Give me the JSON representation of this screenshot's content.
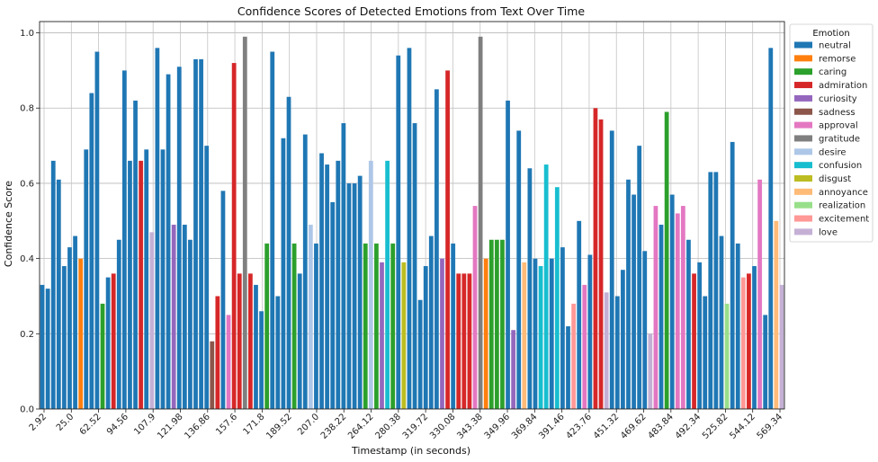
{
  "chart_data": {
    "type": "bar",
    "title": "Confidence Scores of Detected Emotions from Text Over Time",
    "xlabel": "Timestamp (in seconds)",
    "ylabel": "Confidence Score",
    "ylim": [
      0,
      1.03
    ],
    "yticks": [
      "0.0",
      "0.2",
      "0.4",
      "0.6",
      "0.8",
      "1.0"
    ],
    "grid": true,
    "legend_title": "Emotion",
    "legend_position": "top-right",
    "emotions": [
      {
        "name": "neutral",
        "color": "#1f77b4"
      },
      {
        "name": "remorse",
        "color": "#ff7f0e"
      },
      {
        "name": "caring",
        "color": "#2ca02c"
      },
      {
        "name": "admiration",
        "color": "#d62728"
      },
      {
        "name": "curiosity",
        "color": "#9467bd"
      },
      {
        "name": "sadness",
        "color": "#8c564b"
      },
      {
        "name": "approval",
        "color": "#e377c2"
      },
      {
        "name": "gratitude",
        "color": "#7f7f7f"
      },
      {
        "name": "desire",
        "color": "#aec7e8"
      },
      {
        "name": "confusion",
        "color": "#17becf"
      },
      {
        "name": "disgust",
        "color": "#bcbd22"
      },
      {
        "name": "annoyance",
        "color": "#ffbb78"
      },
      {
        "name": "realization",
        "color": "#98df8a"
      },
      {
        "name": "excitement",
        "color": "#ff9896"
      },
      {
        "name": "love",
        "color": "#c5b0d5"
      }
    ],
    "x_tick_labels": [
      "2.92",
      "25.0",
      "62.52",
      "94.56",
      "107.9",
      "121.98",
      "136.86",
      "157.6",
      "171.8",
      "189.52",
      "207.0",
      "238.22",
      "264.12",
      "280.38",
      "319.72",
      "330.08",
      "343.38",
      "349.96",
      "369.84",
      "391.46",
      "423.76",
      "451.32",
      "469.62",
      "483.84",
      "492.34",
      "525.82",
      "544.12",
      "569.34"
    ],
    "bars": [
      {
        "emotion": "neutral",
        "value": 0.33
      },
      {
        "emotion": "neutral",
        "value": 0.32
      },
      {
        "emotion": "neutral",
        "value": 0.66
      },
      {
        "emotion": "neutral",
        "value": 0.61
      },
      {
        "emotion": "neutral",
        "value": 0.38
      },
      {
        "emotion": "neutral",
        "value": 0.43
      },
      {
        "emotion": "neutral",
        "value": 0.46
      },
      {
        "emotion": "remorse",
        "value": 0.4
      },
      {
        "emotion": "neutral",
        "value": 0.69
      },
      {
        "emotion": "neutral",
        "value": 0.84
      },
      {
        "emotion": "neutral",
        "value": 0.95
      },
      {
        "emotion": "caring",
        "value": 0.28
      },
      {
        "emotion": "neutral",
        "value": 0.35
      },
      {
        "emotion": "admiration",
        "value": 0.36
      },
      {
        "emotion": "neutral",
        "value": 0.45
      },
      {
        "emotion": "neutral",
        "value": 0.9
      },
      {
        "emotion": "neutral",
        "value": 0.66
      },
      {
        "emotion": "neutral",
        "value": 0.82
      },
      {
        "emotion": "admiration",
        "value": 0.66
      },
      {
        "emotion": "neutral",
        "value": 0.69
      },
      {
        "emotion": "love",
        "value": 0.47
      },
      {
        "emotion": "neutral",
        "value": 0.96
      },
      {
        "emotion": "neutral",
        "value": 0.69
      },
      {
        "emotion": "neutral",
        "value": 0.89
      },
      {
        "emotion": "curiosity",
        "value": 0.49
      },
      {
        "emotion": "neutral",
        "value": 0.91
      },
      {
        "emotion": "neutral",
        "value": 0.49
      },
      {
        "emotion": "neutral",
        "value": 0.45
      },
      {
        "emotion": "neutral",
        "value": 0.93
      },
      {
        "emotion": "neutral",
        "value": 0.93
      },
      {
        "emotion": "neutral",
        "value": 0.7
      },
      {
        "emotion": "sadness",
        "value": 0.18
      },
      {
        "emotion": "admiration",
        "value": 0.3
      },
      {
        "emotion": "neutral",
        "value": 0.58
      },
      {
        "emotion": "approval",
        "value": 0.25
      },
      {
        "emotion": "admiration",
        "value": 0.92
      },
      {
        "emotion": "admiration",
        "value": 0.36
      },
      {
        "emotion": "gratitude",
        "value": 0.99
      },
      {
        "emotion": "admiration",
        "value": 0.36
      },
      {
        "emotion": "neutral",
        "value": 0.33
      },
      {
        "emotion": "neutral",
        "value": 0.26
      },
      {
        "emotion": "caring",
        "value": 0.44
      },
      {
        "emotion": "neutral",
        "value": 0.95
      },
      {
        "emotion": "neutral",
        "value": 0.3
      },
      {
        "emotion": "neutral",
        "value": 0.72
      },
      {
        "emotion": "neutral",
        "value": 0.83
      },
      {
        "emotion": "caring",
        "value": 0.44
      },
      {
        "emotion": "neutral",
        "value": 0.36
      },
      {
        "emotion": "neutral",
        "value": 0.73
      },
      {
        "emotion": "desire",
        "value": 0.49
      },
      {
        "emotion": "neutral",
        "value": 0.44
      },
      {
        "emotion": "neutral",
        "value": 0.68
      },
      {
        "emotion": "neutral",
        "value": 0.65
      },
      {
        "emotion": "neutral",
        "value": 0.55
      },
      {
        "emotion": "neutral",
        "value": 0.66
      },
      {
        "emotion": "neutral",
        "value": 0.76
      },
      {
        "emotion": "neutral",
        "value": 0.6
      },
      {
        "emotion": "neutral",
        "value": 0.6
      },
      {
        "emotion": "neutral",
        "value": 0.62
      },
      {
        "emotion": "caring",
        "value": 0.44
      },
      {
        "emotion": "desire",
        "value": 0.66
      },
      {
        "emotion": "caring",
        "value": 0.44
      },
      {
        "emotion": "curiosity",
        "value": 0.39
      },
      {
        "emotion": "confusion",
        "value": 0.66
      },
      {
        "emotion": "caring",
        "value": 0.44
      },
      {
        "emotion": "neutral",
        "value": 0.94
      },
      {
        "emotion": "disgust",
        "value": 0.39
      },
      {
        "emotion": "neutral",
        "value": 0.96
      },
      {
        "emotion": "neutral",
        "value": 0.76
      },
      {
        "emotion": "neutral",
        "value": 0.29
      },
      {
        "emotion": "neutral",
        "value": 0.38
      },
      {
        "emotion": "neutral",
        "value": 0.46
      },
      {
        "emotion": "neutral",
        "value": 0.85
      },
      {
        "emotion": "curiosity",
        "value": 0.4
      },
      {
        "emotion": "admiration",
        "value": 0.9
      },
      {
        "emotion": "neutral",
        "value": 0.44
      },
      {
        "emotion": "admiration",
        "value": 0.36
      },
      {
        "emotion": "admiration",
        "value": 0.36
      },
      {
        "emotion": "admiration",
        "value": 0.36
      },
      {
        "emotion": "approval",
        "value": 0.54
      },
      {
        "emotion": "gratitude",
        "value": 0.99
      },
      {
        "emotion": "remorse",
        "value": 0.4
      },
      {
        "emotion": "caring",
        "value": 0.45
      },
      {
        "emotion": "caring",
        "value": 0.45
      },
      {
        "emotion": "caring",
        "value": 0.45
      },
      {
        "emotion": "neutral",
        "value": 0.82
      },
      {
        "emotion": "curiosity",
        "value": 0.21
      },
      {
        "emotion": "neutral",
        "value": 0.74
      },
      {
        "emotion": "annoyance",
        "value": 0.39
      },
      {
        "emotion": "neutral",
        "value": 0.64
      },
      {
        "emotion": "neutral",
        "value": 0.4
      },
      {
        "emotion": "confusion",
        "value": 0.38
      },
      {
        "emotion": "confusion",
        "value": 0.65
      },
      {
        "emotion": "neutral",
        "value": 0.4
      },
      {
        "emotion": "confusion",
        "value": 0.59
      },
      {
        "emotion": "neutral",
        "value": 0.43
      },
      {
        "emotion": "neutral",
        "value": 0.22
      },
      {
        "emotion": "excitement",
        "value": 0.28
      },
      {
        "emotion": "neutral",
        "value": 0.5
      },
      {
        "emotion": "approval",
        "value": 0.33
      },
      {
        "emotion": "neutral",
        "value": 0.41
      },
      {
        "emotion": "admiration",
        "value": 0.8
      },
      {
        "emotion": "admiration",
        "value": 0.77
      },
      {
        "emotion": "love",
        "value": 0.31
      },
      {
        "emotion": "neutral",
        "value": 0.74
      },
      {
        "emotion": "neutral",
        "value": 0.3
      },
      {
        "emotion": "neutral",
        "value": 0.37
      },
      {
        "emotion": "neutral",
        "value": 0.61
      },
      {
        "emotion": "neutral",
        "value": 0.57
      },
      {
        "emotion": "neutral",
        "value": 0.7
      },
      {
        "emotion": "neutral",
        "value": 0.42
      },
      {
        "emotion": "love",
        "value": 0.2
      },
      {
        "emotion": "approval",
        "value": 0.54
      },
      {
        "emotion": "neutral",
        "value": 0.49
      },
      {
        "emotion": "caring",
        "value": 0.79
      },
      {
        "emotion": "neutral",
        "value": 0.57
      },
      {
        "emotion": "approval",
        "value": 0.52
      },
      {
        "emotion": "approval",
        "value": 0.54
      },
      {
        "emotion": "neutral",
        "value": 0.45
      },
      {
        "emotion": "admiration",
        "value": 0.36
      },
      {
        "emotion": "neutral",
        "value": 0.39
      },
      {
        "emotion": "neutral",
        "value": 0.3
      },
      {
        "emotion": "neutral",
        "value": 0.63
      },
      {
        "emotion": "neutral",
        "value": 0.63
      },
      {
        "emotion": "neutral",
        "value": 0.46
      },
      {
        "emotion": "realization",
        "value": 0.28
      },
      {
        "emotion": "neutral",
        "value": 0.71
      },
      {
        "emotion": "neutral",
        "value": 0.44
      },
      {
        "emotion": "excitement",
        "value": 0.35
      },
      {
        "emotion": "admiration",
        "value": 0.36
      },
      {
        "emotion": "neutral",
        "value": 0.38
      },
      {
        "emotion": "approval",
        "value": 0.61
      },
      {
        "emotion": "neutral",
        "value": 0.25
      },
      {
        "emotion": "neutral",
        "value": 0.96
      },
      {
        "emotion": "annoyance",
        "value": 0.5
      },
      {
        "emotion": "love",
        "value": 0.33
      }
    ]
  }
}
